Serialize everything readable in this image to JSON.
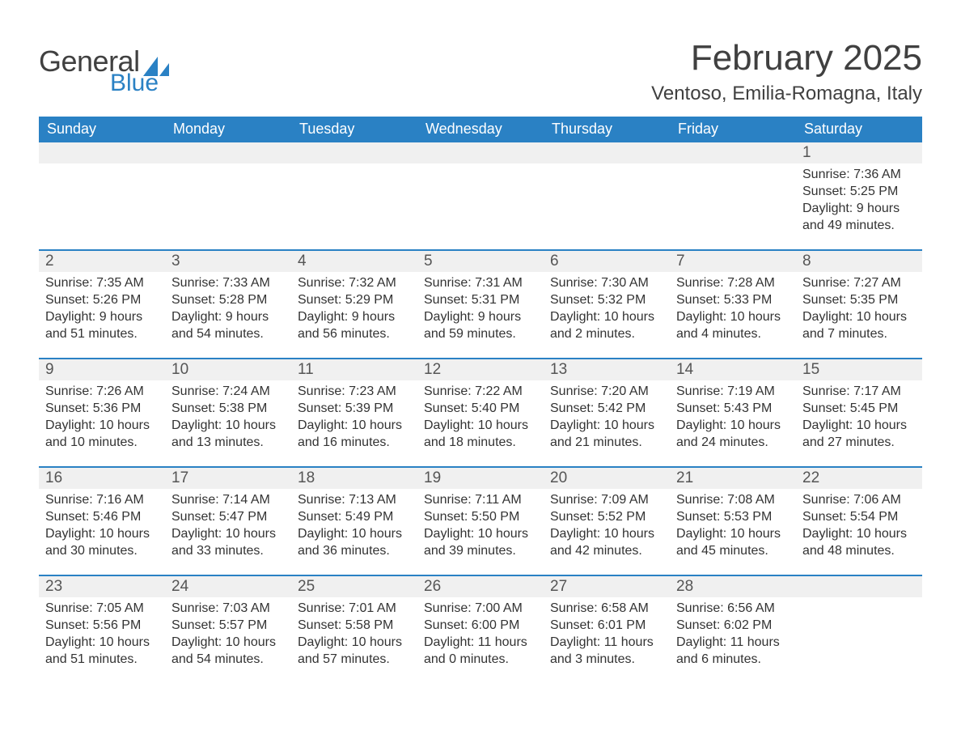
{
  "logo": {
    "word1": "General",
    "word2": "Blue"
  },
  "title": "February 2025",
  "location": "Ventoso, Emilia-Romagna, Italy",
  "colors": {
    "brand_blue": "#2a81c4",
    "header_bg": "#2a81c4",
    "header_text": "#ffffff",
    "day_bg": "#f0f0f0",
    "day_text": "#555555",
    "body_text": "#333333",
    "title_text": "#404040",
    "row_border": "#2a81c4",
    "background": "#ffffff"
  },
  "weekdays": [
    "Sunday",
    "Monday",
    "Tuesday",
    "Wednesday",
    "Thursday",
    "Friday",
    "Saturday"
  ],
  "calendar": {
    "type": "table",
    "columns": 7,
    "rows": 5,
    "start_weekday_index": 6,
    "days": [
      {
        "n": 1,
        "sunrise": "7:36 AM",
        "sunset": "5:25 PM",
        "daylight": "9 hours and 49 minutes."
      },
      {
        "n": 2,
        "sunrise": "7:35 AM",
        "sunset": "5:26 PM",
        "daylight": "9 hours and 51 minutes."
      },
      {
        "n": 3,
        "sunrise": "7:33 AM",
        "sunset": "5:28 PM",
        "daylight": "9 hours and 54 minutes."
      },
      {
        "n": 4,
        "sunrise": "7:32 AM",
        "sunset": "5:29 PM",
        "daylight": "9 hours and 56 minutes."
      },
      {
        "n": 5,
        "sunrise": "7:31 AM",
        "sunset": "5:31 PM",
        "daylight": "9 hours and 59 minutes."
      },
      {
        "n": 6,
        "sunrise": "7:30 AM",
        "sunset": "5:32 PM",
        "daylight": "10 hours and 2 minutes."
      },
      {
        "n": 7,
        "sunrise": "7:28 AM",
        "sunset": "5:33 PM",
        "daylight": "10 hours and 4 minutes."
      },
      {
        "n": 8,
        "sunrise": "7:27 AM",
        "sunset": "5:35 PM",
        "daylight": "10 hours and 7 minutes."
      },
      {
        "n": 9,
        "sunrise": "7:26 AM",
        "sunset": "5:36 PM",
        "daylight": "10 hours and 10 minutes."
      },
      {
        "n": 10,
        "sunrise": "7:24 AM",
        "sunset": "5:38 PM",
        "daylight": "10 hours and 13 minutes."
      },
      {
        "n": 11,
        "sunrise": "7:23 AM",
        "sunset": "5:39 PM",
        "daylight": "10 hours and 16 minutes."
      },
      {
        "n": 12,
        "sunrise": "7:22 AM",
        "sunset": "5:40 PM",
        "daylight": "10 hours and 18 minutes."
      },
      {
        "n": 13,
        "sunrise": "7:20 AM",
        "sunset": "5:42 PM",
        "daylight": "10 hours and 21 minutes."
      },
      {
        "n": 14,
        "sunrise": "7:19 AM",
        "sunset": "5:43 PM",
        "daylight": "10 hours and 24 minutes."
      },
      {
        "n": 15,
        "sunrise": "7:17 AM",
        "sunset": "5:45 PM",
        "daylight": "10 hours and 27 minutes."
      },
      {
        "n": 16,
        "sunrise": "7:16 AM",
        "sunset": "5:46 PM",
        "daylight": "10 hours and 30 minutes."
      },
      {
        "n": 17,
        "sunrise": "7:14 AM",
        "sunset": "5:47 PM",
        "daylight": "10 hours and 33 minutes."
      },
      {
        "n": 18,
        "sunrise": "7:13 AM",
        "sunset": "5:49 PM",
        "daylight": "10 hours and 36 minutes."
      },
      {
        "n": 19,
        "sunrise": "7:11 AM",
        "sunset": "5:50 PM",
        "daylight": "10 hours and 39 minutes."
      },
      {
        "n": 20,
        "sunrise": "7:09 AM",
        "sunset": "5:52 PM",
        "daylight": "10 hours and 42 minutes."
      },
      {
        "n": 21,
        "sunrise": "7:08 AM",
        "sunset": "5:53 PM",
        "daylight": "10 hours and 45 minutes."
      },
      {
        "n": 22,
        "sunrise": "7:06 AM",
        "sunset": "5:54 PM",
        "daylight": "10 hours and 48 minutes."
      },
      {
        "n": 23,
        "sunrise": "7:05 AM",
        "sunset": "5:56 PM",
        "daylight": "10 hours and 51 minutes."
      },
      {
        "n": 24,
        "sunrise": "7:03 AM",
        "sunset": "5:57 PM",
        "daylight": "10 hours and 54 minutes."
      },
      {
        "n": 25,
        "sunrise": "7:01 AM",
        "sunset": "5:58 PM",
        "daylight": "10 hours and 57 minutes."
      },
      {
        "n": 26,
        "sunrise": "7:00 AM",
        "sunset": "6:00 PM",
        "daylight": "11 hours and 0 minutes."
      },
      {
        "n": 27,
        "sunrise": "6:58 AM",
        "sunset": "6:01 PM",
        "daylight": "11 hours and 3 minutes."
      },
      {
        "n": 28,
        "sunrise": "6:56 AM",
        "sunset": "6:02 PM",
        "daylight": "11 hours and 6 minutes."
      }
    ]
  },
  "labels": {
    "sunrise": "Sunrise:",
    "sunset": "Sunset:",
    "daylight": "Daylight:"
  },
  "typography": {
    "month_title_fontsize": 44,
    "location_fontsize": 24,
    "weekday_fontsize": 18,
    "daynum_fontsize": 19,
    "body_fontsize": 16,
    "font_family": "Segoe UI, Arial, sans-serif"
  }
}
